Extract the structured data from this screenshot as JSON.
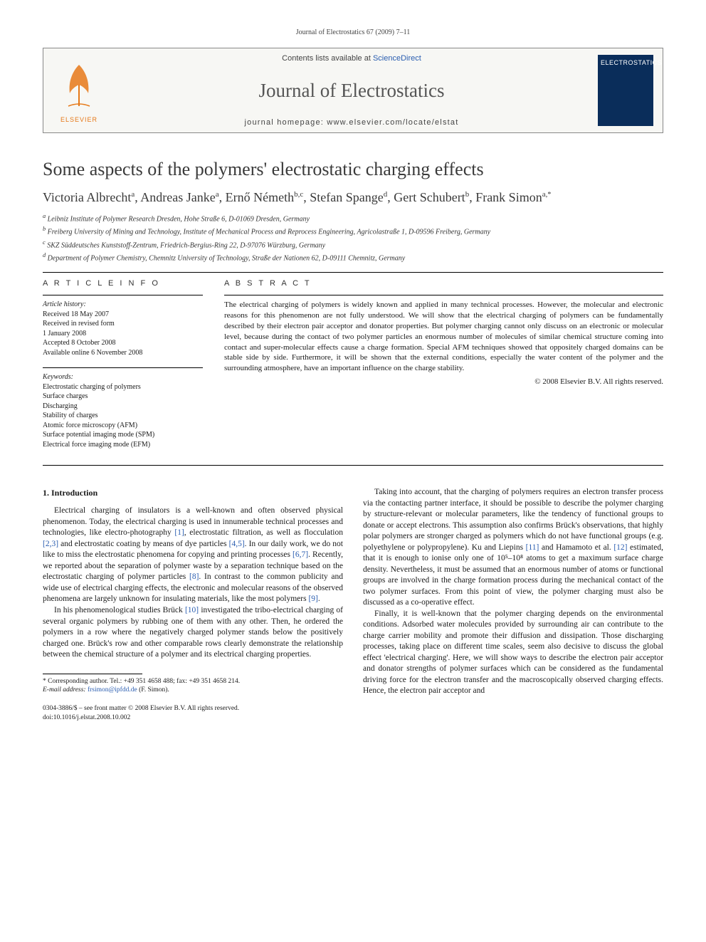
{
  "running_head": "Journal of Electrostatics 67 (2009) 7–11",
  "masthead": {
    "publisher": "ELSEVIER",
    "contents_prefix": "Contents lists available at ",
    "contents_link": "ScienceDirect",
    "journal_title": "Journal of Electrostatics",
    "homepage_label": "journal homepage: ",
    "homepage_url": "www.elsevier.com/locate/elstat",
    "cover_label": "ELECTROSTATICS"
  },
  "article": {
    "title": "Some aspects of the polymers' electrostatic charging effects",
    "authors_html": "Victoria Albrecht<sup>a</sup>, Andreas Janke<sup>a</sup>, Ernő Németh<sup>b,c</sup>, Stefan Spange<sup>d</sup>, Gert Schubert<sup>b</sup>, Frank Simon<sup>a,</sup>*",
    "affiliations": [
      "a Leibniz Institute of Polymer Research Dresden, Hohe Straße 6, D-01069 Dresden, Germany",
      "b Freiberg University of Mining and Technology, Institute of Mechanical Process and Reprocess Engineering, Agricolastraße 1, D-09596 Freiberg, Germany",
      "c SKZ Süddeutsches Kunststoff-Zentrum, Friedrich-Bergius-Ring 22, D-97076 Würzburg, Germany",
      "d Department of Polymer Chemistry, Chemnitz University of Technology, Straße der Nationen 62, D-09111 Chemnitz, Germany"
    ]
  },
  "info": {
    "heading": "A R T I C L E   I N F O",
    "history_title": "Article history:",
    "history": [
      "Received 18 May 2007",
      "Received in revised form",
      "1 January 2008",
      "Accepted 8 October 2008",
      "Available online 6 November 2008"
    ],
    "keywords_title": "Keywords:",
    "keywords": [
      "Electrostatic charging of polymers",
      "Surface charges",
      "Discharging",
      "Stability of charges",
      "Atomic force microscopy (AFM)",
      "Surface potential imaging mode (SPM)",
      "Electrical force imaging mode (EFM)"
    ]
  },
  "abstract": {
    "heading": "A B S T R A C T",
    "text": "The electrical charging of polymers is widely known and applied in many technical processes. However, the molecular and electronic reasons for this phenomenon are not fully understood. We will show that the electrical charging of polymers can be fundamentally described by their electron pair acceptor and donator properties. But polymer charging cannot only discuss on an electronic or molecular level, because during the contact of two polymer particles an enormous number of molecules of similar chemical structure coming into contact and super-molecular effects cause a charge formation. Special AFM techniques showed that oppositely charged domains can be stable side by side. Furthermore, it will be shown that the external conditions, especially the water content of the polymer and the surrounding atmosphere, have an important influence on the charge stability.",
    "copyright": "© 2008 Elsevier B.V. All rights reserved."
  },
  "section1": {
    "heading": "1.  Introduction",
    "p1": "Electrical charging of insulators is a well-known and often observed physical phenomenon. Today, the electrical charging is used in innumerable technical processes and technologies, like electro-photography [1], electrostatic filtration, as well as flocculation [2,3] and electrostatic coating by means of dye particles [4,5]. In our daily work, we do not like to miss the electrostatic phenomena for copying and printing processes [6,7]. Recently, we reported about the separation of polymer waste by a separation technique based on the electrostatic charging of polymer particles [8]. In contrast to the common publicity and wide use of electrical charging effects, the electronic and molecular reasons of the observed phenomena are largely unknown for insulating materials, like the most polymers [9].",
    "p2": "In his phenomenological studies Brück [10] investigated the tribo-electrical charging of several organic polymers by rubbing one of them with any other. Then, he ordered the polymers in a row where the negatively charged polymer stands below the positively charged one. Brück's row and other comparable rows clearly demonstrate the relationship between the chemical structure of a polymer and its electrical charging properties.",
    "p3": "Taking into account, that the charging of polymers requires an electron transfer process via the contacting partner interface, it should be possible to describe the polymer charging by structure-relevant or molecular parameters, like the tendency of functional groups to donate or accept electrons. This assumption also confirms Brück's observations, that highly polar polymers are stronger charged as polymers which do not have functional groups (e.g. polyethylene or polypropylene). Ku and Liepins [11] and Hamamoto et al. [12] estimated, that it is enough to ionise only one of 10⁵–10⁸ atoms to get a maximum surface charge density. Nevertheless, it must be assumed that an enormous number of atoms or functional groups are involved in the charge formation process during the mechanical contact of the two polymer surfaces. From this point of view, the polymer charging must also be discussed as a co-operative effect.",
    "p4": "Finally, it is well-known that the polymer charging depends on the environmental conditions. Adsorbed water molecules provided by surrounding air can contribute to the charge carrier mobility and promote their diffusion and dissipation. Those discharging processes, taking place on different time scales, seem also decisive to discuss the global effect 'electrical charging'. Here, we will show ways to describe the electron pair acceptor and donator strengths of polymer surfaces which can be considered as the fundamental driving force for the electron transfer and the macroscopically observed charging effects. Hence, the electron pair acceptor and"
  },
  "footnote": {
    "corr_label": "* Corresponding author. Tel.: +49 351 4658 488; fax: +49 351 4658 214.",
    "email_label": "E-mail address:",
    "email": "frsimon@ipfdd.de",
    "email_who": "(F. Simon)."
  },
  "footer": {
    "line1": "0304-3886/$ – see front matter © 2008 Elsevier B.V. All rights reserved.",
    "line2": "doi:10.1016/j.elstat.2008.10.002"
  },
  "colors": {
    "link": "#2a5db0",
    "elsevier_orange": "#e67817",
    "cover_bg": "#0a2d5a",
    "text": "#1a1a1a",
    "rule": "#000000",
    "masthead_bg": "#f7f7f4"
  }
}
